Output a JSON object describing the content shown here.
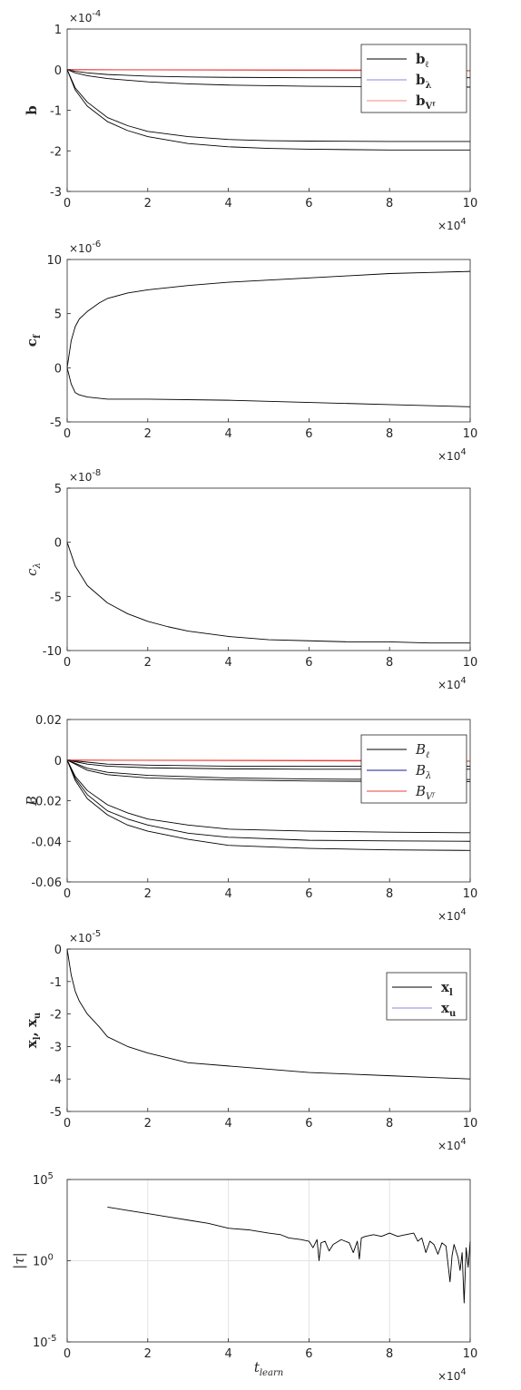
{
  "chart_data": [
    {
      "type": "line",
      "ylabel": "b",
      "xlim": [
        0,
        100000
      ],
      "ylim": [
        -0.0003,
        0.0001
      ],
      "yticks": [
        -0.0003,
        -0.0002,
        -0.0001,
        0,
        0.0001
      ],
      "ytick_labels": [
        "-3",
        "-2",
        "-1",
        "0",
        "1"
      ],
      "xticks": [
        0,
        20000,
        40000,
        60000,
        80000,
        100000
      ],
      "xtick_labels": [
        "0",
        "2",
        "4",
        "6",
        "8",
        "10"
      ],
      "y_exponent": "×10",
      "y_exponent_power": "-4",
      "x_exponent": "×10",
      "x_exponent_power": "4",
      "legend": {
        "placement": "top-right",
        "entries": [
          {
            "label": "b",
            "sub": "ℓ",
            "color": "#000000"
          },
          {
            "label": "b",
            "sub": "λ",
            "color": "#8a8ae6"
          },
          {
            "label": "b",
            "sub": "Vᶠ",
            "color": "#f08a8a"
          }
        ]
      },
      "series": [
        {
          "color": "#000000",
          "x": [
            0,
            2000,
            5000,
            10000,
            20000,
            30000,
            40000,
            60000,
            80000,
            100000
          ],
          "y": [
            0,
            -4e-06,
            -8e-06,
            -1.2e-05,
            -1.6e-05,
            -1.8e-05,
            -1.9e-05,
            -2e-05,
            -2e-05,
            -2e-05
          ]
        },
        {
          "color": "#000000",
          "x": [
            0,
            2000,
            5000,
            10000,
            20000,
            30000,
            40000,
            60000,
            80000,
            100000
          ],
          "y": [
            0,
            -8e-06,
            -1.5e-05,
            -2.2e-05,
            -3e-05,
            -3.5e-05,
            -3.8e-05,
            -4.1e-05,
            -4.2e-05,
            -4.3e-05
          ]
        },
        {
          "color": "#000000",
          "x": [
            0,
            2000,
            5000,
            10000,
            15000,
            20000,
            30000,
            40000,
            50000,
            60000,
            80000,
            100000
          ],
          "y": [
            0,
            -4.5e-05,
            -8e-05,
            -0.000118,
            -0.000138,
            -0.000152,
            -0.000165,
            -0.000172,
            -0.000175,
            -0.000176,
            -0.000177,
            -0.000177
          ]
        },
        {
          "color": "#000000",
          "x": [
            0,
            2000,
            5000,
            10000,
            15000,
            20000,
            30000,
            40000,
            50000,
            60000,
            80000,
            100000
          ],
          "y": [
            0,
            -5e-05,
            -9e-05,
            -0.000128,
            -0.00015,
            -0.000165,
            -0.000182,
            -0.00019,
            -0.000194,
            -0.000196,
            -0.000198,
            -0.000198
          ]
        },
        {
          "color": "#e8413c",
          "x": [
            0,
            100000
          ],
          "y": [
            0,
            -1e-06
          ]
        },
        {
          "color": "#e8413c",
          "x": [
            0,
            100000
          ],
          "y": [
            0,
            -3e-06
          ]
        }
      ]
    },
    {
      "type": "line",
      "ylabel": "c",
      "ylabel_sub": "f",
      "xlim": [
        0,
        100000
      ],
      "ylim": [
        -5e-06,
        1e-05
      ],
      "yticks": [
        -5e-06,
        0,
        5e-06,
        1e-05
      ],
      "ytick_labels": [
        "-5",
        "0",
        "5",
        "10"
      ],
      "xticks": [
        0,
        20000,
        40000,
        60000,
        80000,
        100000
      ],
      "xtick_labels": [
        "0",
        "2",
        "4",
        "6",
        "8",
        "10"
      ],
      "y_exponent": "×10",
      "y_exponent_power": "-6",
      "x_exponent": "×10",
      "x_exponent_power": "4",
      "series": [
        {
          "color": "#000000",
          "x": [
            0,
            1000,
            2000,
            3000,
            5000,
            8000,
            10000,
            15000,
            20000,
            30000,
            40000,
            50000,
            60000,
            70000,
            80000,
            90000,
            100000
          ],
          "y": [
            0,
            2.5e-06,
            3.8e-06,
            4.5e-06,
            5.2e-06,
            6e-06,
            6.4e-06,
            6.9e-06,
            7.2e-06,
            7.6e-06,
            7.9e-06,
            8.1e-06,
            8.3e-06,
            8.5e-06,
            8.7e-06,
            8.8e-06,
            8.9e-06
          ]
        },
        {
          "color": "#000000",
          "x": [
            0,
            1000,
            2000,
            3000,
            5000,
            10000,
            20000,
            40000,
            60000,
            80000,
            100000
          ],
          "y": [
            0,
            -1.5e-06,
            -2.3e-06,
            -2.5e-06,
            -2.7e-06,
            -2.9e-06,
            -2.9e-06,
            -3e-06,
            -3.2e-06,
            -3.4e-06,
            -3.6e-06
          ]
        }
      ]
    },
    {
      "type": "line",
      "ylabel": "c",
      "ylabel_sub": "λ",
      "xlim": [
        0,
        100000
      ],
      "ylim": [
        -1e-07,
        5e-08
      ],
      "yticks": [
        -1e-07,
        -5e-08,
        0,
        5e-08
      ],
      "ytick_labels": [
        "-10",
        "-5",
        "0",
        "5"
      ],
      "xticks": [
        0,
        20000,
        40000,
        60000,
        80000,
        100000
      ],
      "xtick_labels": [
        "0",
        "2",
        "4",
        "6",
        "8",
        "10"
      ],
      "y_exponent": "×10",
      "y_exponent_power": "-8",
      "x_exponent": "×10",
      "x_exponent_power": "4",
      "series": [
        {
          "color": "#000000",
          "x": [
            0,
            2000,
            5000,
            10000,
            15000,
            20000,
            25000,
            30000,
            40000,
            50000,
            60000,
            70000,
            80000,
            90000,
            100000
          ],
          "y": [
            0,
            -2.2e-08,
            -4e-08,
            -5.6e-08,
            -6.6e-08,
            -7.3e-08,
            -7.8e-08,
            -8.2e-08,
            -8.7e-08,
            -9e-08,
            -9.1e-08,
            -9.2e-08,
            -9.2e-08,
            -9.3e-08,
            -9.3e-08
          ]
        }
      ]
    },
    {
      "type": "line",
      "ylabel": "B",
      "xlim": [
        0,
        100000
      ],
      "ylim": [
        -0.06,
        0.02
      ],
      "yticks": [
        -0.06,
        -0.04,
        -0.02,
        0,
        0.02
      ],
      "ytick_labels": [
        "-0.06",
        "-0.04",
        "-0.02",
        "0",
        "0.02"
      ],
      "xticks": [
        0,
        20000,
        40000,
        60000,
        80000,
        100000
      ],
      "xtick_labels": [
        "0",
        "2",
        "4",
        "6",
        "8",
        "10"
      ],
      "x_exponent": "×10",
      "x_exponent_power": "4",
      "legend": {
        "placement": "top-right",
        "entries": [
          {
            "label": "B",
            "sub": "ℓ",
            "color": "#000000"
          },
          {
            "label": "B",
            "sub": "λ",
            "color": "#1a1a99"
          },
          {
            "label": "B",
            "sub": "Vᶠ",
            "color": "#e8413c"
          }
        ]
      },
      "series": [
        {
          "color": "#000000",
          "x": [
            0,
            5000,
            10000,
            20000,
            40000,
            60000,
            80000,
            100000
          ],
          "y": [
            0,
            -0.001,
            -0.002,
            -0.0025,
            -0.003,
            -0.003,
            -0.003,
            -0.003
          ]
        },
        {
          "color": "#000000",
          "x": [
            0,
            5000,
            10000,
            20000,
            40000,
            60000,
            80000,
            100000
          ],
          "y": [
            0,
            -0.002,
            -0.003,
            -0.0038,
            -0.0043,
            -0.0045,
            -0.0045,
            -0.0045
          ]
        },
        {
          "color": "#000000",
          "x": [
            0,
            5000,
            10000,
            20000,
            40000,
            60000,
            80000,
            100000
          ],
          "y": [
            0,
            -0.004,
            -0.006,
            -0.0075,
            -0.0088,
            -0.0093,
            -0.0095,
            -0.0096
          ]
        },
        {
          "color": "#000000",
          "x": [
            0,
            5000,
            10000,
            20000,
            40000,
            60000,
            80000,
            100000
          ],
          "y": [
            0,
            -0.005,
            -0.0072,
            -0.0088,
            -0.0098,
            -0.0103,
            -0.0105,
            -0.0106
          ]
        },
        {
          "color": "#000000",
          "x": [
            0,
            2000,
            5000,
            10000,
            15000,
            20000,
            30000,
            40000,
            60000,
            80000,
            100000
          ],
          "y": [
            0,
            -0.008,
            -0.015,
            -0.022,
            -0.026,
            -0.029,
            -0.032,
            -0.034,
            -0.035,
            -0.0355,
            -0.0358
          ]
        },
        {
          "color": "#000000",
          "x": [
            0,
            2000,
            5000,
            10000,
            15000,
            20000,
            30000,
            40000,
            60000,
            80000,
            100000
          ],
          "y": [
            0,
            -0.009,
            -0.017,
            -0.025,
            -0.029,
            -0.032,
            -0.036,
            -0.038,
            -0.0395,
            -0.0398,
            -0.04
          ]
        },
        {
          "color": "#000000",
          "x": [
            0,
            2000,
            5000,
            10000,
            15000,
            20000,
            30000,
            40000,
            60000,
            80000,
            100000
          ],
          "y": [
            0,
            -0.01,
            -0.019,
            -0.027,
            -0.032,
            -0.035,
            -0.039,
            -0.042,
            -0.0435,
            -0.0442,
            -0.0445
          ]
        },
        {
          "color": "#e8413c",
          "x": [
            0,
            100000
          ],
          "y": [
            0,
            -0.0002
          ]
        },
        {
          "color": "#e8413c",
          "x": [
            0,
            100000
          ],
          "y": [
            0,
            -0.0006
          ]
        }
      ]
    },
    {
      "type": "line",
      "ylabel": "x",
      "ylabel_sub": "l",
      "ylabel2": "x",
      "ylabel2_sub": "u",
      "xlim": [
        0,
        100000
      ],
      "ylim": [
        -5e-05,
        0
      ],
      "yticks": [
        -5e-05,
        -4e-05,
        -3e-05,
        -2e-05,
        -1e-05,
        0
      ],
      "ytick_labels": [
        "-5",
        "-4",
        "-3",
        "-2",
        "-1",
        "0"
      ],
      "xticks": [
        0,
        20000,
        40000,
        60000,
        80000,
        100000
      ],
      "xtick_labels": [
        "0",
        "2",
        "4",
        "6",
        "8",
        "10"
      ],
      "y_exponent": "×10",
      "y_exponent_power": "-5",
      "x_exponent": "×10",
      "x_exponent_power": "4",
      "legend": {
        "placement": "top-right",
        "entries": [
          {
            "label": "x",
            "sub": "l",
            "color": "#000000"
          },
          {
            "label": "x",
            "sub": "u",
            "color": "#8a8ae6"
          }
        ]
      },
      "series": [
        {
          "color": "#000000",
          "x": [
            0,
            1000,
            2000,
            3000,
            5000,
            8000,
            10000,
            15000,
            20000,
            30000,
            40000,
            50000,
            60000,
            70000,
            80000,
            90000,
            100000
          ],
          "y": [
            0,
            -8e-06,
            -1.3e-05,
            -1.6e-05,
            -2e-05,
            -2.4e-05,
            -2.7e-05,
            -3e-05,
            -3.2e-05,
            -3.5e-05,
            -3.6e-05,
            -3.7e-05,
            -3.8e-05,
            -3.85e-05,
            -3.9e-05,
            -3.95e-05,
            -4e-05
          ]
        }
      ]
    },
    {
      "type": "line",
      "ylabel": "|τ|",
      "xlabel": "t",
      "xlabel_sub": "learn",
      "yscale": "log",
      "xlim": [
        0,
        100000
      ],
      "ylim_log10": [
        -5,
        5
      ],
      "yticks_log10": [
        -5,
        0,
        5
      ],
      "ytick_base": "10",
      "ytick_powers": [
        "-5",
        "0",
        "5"
      ],
      "xticks": [
        0,
        20000,
        40000,
        60000,
        80000,
        100000
      ],
      "xtick_labels": [
        "0",
        "2",
        "4",
        "6",
        "8",
        "10"
      ],
      "x_exponent": "×10",
      "x_exponent_power": "4",
      "grid": true,
      "series": [
        {
          "color": "#000000",
          "x": [
            10000,
            15000,
            20000,
            25000,
            30000,
            35000,
            40000,
            45000,
            50000,
            53000,
            55000,
            58000,
            60000,
            61000,
            62000,
            62500,
            63000,
            64000,
            65000,
            66000,
            68000,
            70000,
            71000,
            72000,
            72500,
            73000,
            74000,
            76000,
            78000,
            80000,
            82000,
            84000,
            86000,
            87000,
            88000,
            89000,
            90000,
            91000,
            92000,
            93000,
            94000,
            95000,
            95500,
            96000,
            97000,
            97500,
            98000,
            98500,
            99000,
            99500,
            100000
          ],
          "y_log10": [
            3.3,
            3.1,
            2.9,
            2.7,
            2.5,
            2.3,
            2.0,
            1.9,
            1.7,
            1.6,
            1.4,
            1.3,
            1.2,
            0.8,
            1.3,
            0.0,
            1.1,
            1.2,
            0.6,
            1.0,
            1.3,
            1.1,
            0.5,
            1.2,
            0.1,
            1.4,
            1.5,
            1.6,
            1.5,
            1.7,
            1.5,
            1.6,
            1.7,
            1.2,
            1.4,
            0.5,
            1.2,
            1.0,
            0.4,
            1.1,
            0.9,
            -1.3,
            0.3,
            1.0,
            0.2,
            -0.6,
            0.5,
            -2.6,
            0.8,
            -0.4,
            1.2
          ]
        }
      ]
    }
  ]
}
